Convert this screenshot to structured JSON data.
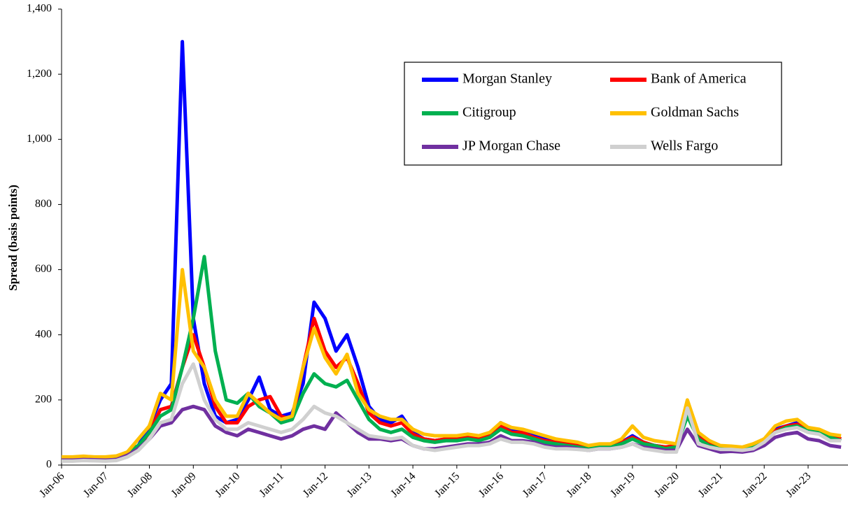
{
  "chart_data": {
    "type": "line",
    "y_label": "Spread (basis points)",
    "categories": [
      "Jan-06",
      null,
      null,
      null,
      "Jan-07",
      null,
      null,
      null,
      "Jan-08",
      null,
      null,
      null,
      "Jan-09",
      null,
      null,
      null,
      "Jan-10",
      null,
      null,
      null,
      "Jan-11",
      null,
      null,
      null,
      "Jan-12",
      null,
      null,
      null,
      "Jan-13",
      null,
      null,
      null,
      "Jan-14",
      null,
      null,
      null,
      "Jan-15",
      null,
      null,
      null,
      "Jan-16",
      null,
      null,
      null,
      "Jan-17",
      null,
      null,
      null,
      "Jan-18",
      null,
      null,
      null,
      "Jan-19",
      null,
      null,
      null,
      "Jan-20",
      null,
      null,
      null,
      "Jan-21",
      null,
      null,
      null,
      "Jan-22",
      null,
      null,
      null,
      "Jan-23",
      null,
      null,
      null
    ],
    "ylim": [
      0,
      1400
    ],
    "yticks": [
      0,
      200,
      400,
      600,
      800,
      {
        "value": 1000,
        "label": "1,000"
      },
      {
        "value": 1200,
        "label": "1,200"
      },
      {
        "value": 1400,
        "label": "1,400"
      }
    ],
    "grid": false,
    "legend": "upper right",
    "series": [
      {
        "name": "Morgan Stanley",
        "color": "#0000ff",
        "values": [
          22,
          22,
          23,
          22,
          20,
          22,
          40,
          60,
          120,
          200,
          250,
          1300,
          450,
          250,
          150,
          130,
          140,
          200,
          270,
          170,
          150,
          160,
          250,
          500,
          450,
          350,
          400,
          300,
          180,
          140,
          130,
          150,
          100,
          80,
          75,
          80,
          80,
          85,
          80,
          90,
          130,
          110,
          100,
          90,
          80,
          75,
          70,
          60,
          55,
          60,
          60,
          70,
          90,
          70,
          60,
          55,
          60,
          180,
          90,
          70,
          55,
          55,
          50,
          60,
          80,
          110,
          120,
          130,
          110,
          100,
          90,
          80
        ]
      },
      {
        "name": "Bank of America",
        "color": "#ff0000",
        "values": [
          18,
          18,
          20,
          20,
          18,
          20,
          35,
          55,
          100,
          170,
          180,
          300,
          400,
          300,
          180,
          130,
          130,
          180,
          200,
          210,
          150,
          140,
          300,
          450,
          350,
          300,
          330,
          250,
          160,
          130,
          120,
          130,
          95,
          80,
          75,
          80,
          80,
          85,
          80,
          90,
          120,
          100,
          100,
          85,
          75,
          70,
          65,
          60,
          50,
          60,
          60,
          70,
          85,
          70,
          60,
          55,
          60,
          170,
          85,
          65,
          55,
          55,
          50,
          55,
          75,
          105,
          120,
          125,
          110,
          105,
          90,
          80
        ]
      },
      {
        "name": "Citigroup",
        "color": "#00b050",
        "values": [
          20,
          20,
          22,
          20,
          18,
          20,
          40,
          60,
          100,
          150,
          170,
          300,
          450,
          640,
          350,
          200,
          190,
          220,
          180,
          160,
          130,
          140,
          220,
          280,
          250,
          240,
          260,
          200,
          140,
          110,
          100,
          110,
          85,
          75,
          70,
          75,
          75,
          80,
          75,
          85,
          110,
          95,
          90,
          80,
          70,
          65,
          60,
          55,
          50,
          55,
          55,
          65,
          80,
          65,
          60,
          50,
          55,
          150,
          80,
          60,
          50,
          50,
          48,
          55,
          75,
          100,
          115,
          120,
          105,
          100,
          85,
          75
        ]
      },
      {
        "name": "Goldman Sachs",
        "color": "#ffc000",
        "values": [
          25,
          25,
          27,
          25,
          25,
          28,
          40,
          80,
          120,
          220,
          200,
          600,
          350,
          300,
          200,
          150,
          150,
          220,
          190,
          160,
          140,
          150,
          300,
          420,
          330,
          280,
          340,
          220,
          170,
          150,
          140,
          140,
          110,
          95,
          90,
          90,
          90,
          95,
          90,
          100,
          130,
          115,
          110,
          100,
          90,
          80,
          75,
          70,
          60,
          65,
          65,
          80,
          120,
          85,
          75,
          70,
          65,
          200,
          100,
          75,
          60,
          58,
          55,
          65,
          80,
          120,
          135,
          140,
          115,
          110,
          95,
          90
        ]
      },
      {
        "name": "JP Morgan Chase",
        "color": "#7030a0",
        "values": [
          15,
          15,
          17,
          16,
          15,
          17,
          30,
          50,
          80,
          120,
          130,
          170,
          180,
          170,
          120,
          100,
          90,
          110,
          100,
          90,
          80,
          90,
          110,
          120,
          110,
          160,
          130,
          100,
          80,
          80,
          75,
          80,
          60,
          50,
          50,
          55,
          60,
          65,
          65,
          70,
          90,
          75,
          75,
          70,
          60,
          55,
          55,
          50,
          45,
          50,
          50,
          55,
          65,
          55,
          50,
          45,
          45,
          110,
          60,
          50,
          40,
          42,
          40,
          45,
          60,
          85,
          95,
          100,
          80,
          75,
          60,
          55
        ]
      },
      {
        "name": "Wells Fargo",
        "color": "#d0d0d0",
        "values": [
          12,
          12,
          14,
          13,
          12,
          14,
          25,
          45,
          80,
          130,
          140,
          250,
          310,
          200,
          140,
          110,
          110,
          130,
          120,
          110,
          100,
          110,
          140,
          180,
          160,
          150,
          130,
          110,
          90,
          85,
          80,
          85,
          60,
          50,
          45,
          50,
          55,
          60,
          60,
          65,
          80,
          70,
          70,
          65,
          55,
          50,
          50,
          48,
          45,
          50,
          50,
          55,
          65,
          50,
          45,
          40,
          40,
          175,
          65,
          55,
          48,
          48,
          45,
          50,
          70,
          100,
          110,
          115,
          100,
          95,
          75,
          75
        ]
      }
    ]
  }
}
